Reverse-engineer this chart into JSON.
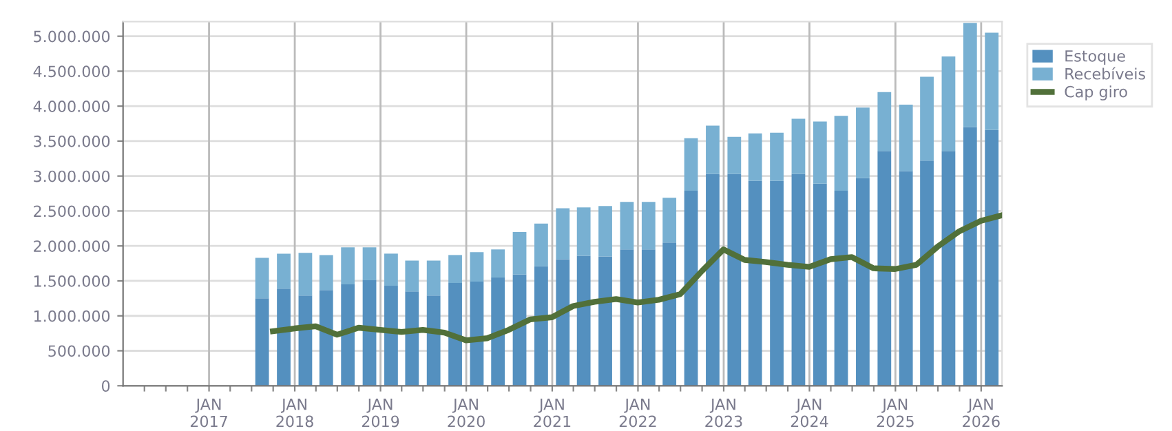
{
  "chart_data": {
    "type": "bar",
    "stacked": true,
    "grid": true,
    "legend": "top right",
    "line_style": "solid",
    "marker": "none",
    "x": [
      "2017-08-15",
      "2017-11-15",
      "2018-02-15",
      "2018-05-15",
      "2018-08-15",
      "2018-11-15",
      "2019-02-15",
      "2019-05-15",
      "2019-08-15",
      "2019-11-15",
      "2020-02-15",
      "2020-05-15",
      "2020-08-15",
      "2020-11-15",
      "2021-02-15",
      "2021-05-15",
      "2021-08-15",
      "2021-11-15",
      "2022-02-15",
      "2022-05-15",
      "2022-08-15",
      "2022-11-15",
      "2023-02-15",
      "2023-05-15",
      "2023-08-15",
      "2023-11-15",
      "2024-02-15",
      "2024-05-15",
      "2024-08-15",
      "2024-11-15",
      "2025-02-15",
      "2025-05-15",
      "2025-08-15",
      "2025-11-15",
      "2026-02-15"
    ],
    "series": [
      {
        "name": "Estoque",
        "color": "#5490bf",
        "values": [
          1250000,
          1390000,
          1290000,
          1370000,
          1450000,
          1510000,
          1430000,
          1350000,
          1290000,
          1470000,
          1490000,
          1550000,
          1590000,
          1710000,
          1810000,
          1860000,
          1850000,
          1950000,
          1950000,
          2050000,
          2790000,
          3030000,
          3030000,
          2930000,
          2930000,
          3030000,
          2890000,
          2790000,
          2970000,
          3360000,
          3070000,
          3220000,
          3360000,
          3700000,
          3660000
        ]
      },
      {
        "name": "Recebíveis",
        "color": "#78b0d2",
        "values": [
          580000,
          500000,
          610000,
          500000,
          530000,
          470000,
          460000,
          440000,
          500000,
          400000,
          420000,
          400000,
          610000,
          610000,
          730000,
          690000,
          720000,
          680000,
          680000,
          640000,
          750000,
          690000,
          530000,
          680000,
          690000,
          790000,
          890000,
          1070000,
          1010000,
          840000,
          950000,
          1200000,
          1350000,
          1490000,
          1390000
        ]
      },
      {
        "name": "Cap giro",
        "type": "line",
        "color": "#51703a",
        "x": [
          "2017-09-30",
          "2017-12-31",
          "2018-03-31",
          "2018-06-30",
          "2018-09-30",
          "2018-12-31",
          "2019-03-31",
          "2019-06-30",
          "2019-09-30",
          "2019-12-31",
          "2020-03-31",
          "2020-06-30",
          "2020-09-30",
          "2020-12-31",
          "2021-03-31",
          "2021-06-30",
          "2021-09-30",
          "2021-12-31",
          "2022-03-31",
          "2022-06-30",
          "2022-09-30",
          "2022-12-31",
          "2023-03-31",
          "2023-06-30",
          "2023-09-30",
          "2023-12-31",
          "2024-03-31",
          "2024-06-30",
          "2024-09-30",
          "2024-12-31",
          "2025-03-31",
          "2025-06-30",
          "2025-09-30",
          "2025-12-31",
          "2026-03-31"
        ],
        "values": [
          780000,
          820000,
          850000,
          730000,
          830000,
          800000,
          770000,
          800000,
          760000,
          650000,
          680000,
          800000,
          950000,
          980000,
          1140000,
          1200000,
          1240000,
          1190000,
          1230000,
          1310000,
          1640000,
          1950000,
          1800000,
          1770000,
          1730000,
          1700000,
          1810000,
          1840000,
          1680000,
          1670000,
          1730000,
          1990000,
          2210000,
          2360000,
          2440000
        ]
      }
    ],
    "xlim": [
      "2016-01-01",
      "2026-03-31"
    ],
    "xticks": [
      {
        "value": "2016-04-01",
        "label": null
      },
      {
        "value": "2016-07-01",
        "label": null
      },
      {
        "value": "2016-10-01",
        "label": null
      },
      {
        "value": "2017-01-01",
        "label": "JAN\n2017"
      },
      {
        "value": "2017-04-01",
        "label": null
      },
      {
        "value": "2017-07-01",
        "label": null
      },
      {
        "value": "2017-10-01",
        "label": null
      },
      {
        "value": "2018-01-01",
        "label": "JAN\n2018"
      },
      {
        "value": "2018-04-01",
        "label": null
      },
      {
        "value": "2018-07-01",
        "label": null
      },
      {
        "value": "2018-10-01",
        "label": null
      },
      {
        "value": "2019-01-01",
        "label": "JAN\n2019"
      },
      {
        "value": "2019-04-01",
        "label": null
      },
      {
        "value": "2019-07-01",
        "label": null
      },
      {
        "value": "2019-10-01",
        "label": null
      },
      {
        "value": "2020-01-01",
        "label": "JAN\n2020"
      },
      {
        "value": "2020-04-01",
        "label": null
      },
      {
        "value": "2020-07-01",
        "label": null
      },
      {
        "value": "2020-10-01",
        "label": null
      },
      {
        "value": "2021-01-01",
        "label": "JAN\n2021"
      },
      {
        "value": "2021-04-01",
        "label": null
      },
      {
        "value": "2021-07-01",
        "label": null
      },
      {
        "value": "2021-10-01",
        "label": null
      },
      {
        "value": "2022-01-01",
        "label": "JAN\n2022"
      },
      {
        "value": "2022-04-01",
        "label": null
      },
      {
        "value": "2022-07-01",
        "label": null
      },
      {
        "value": "2022-10-01",
        "label": null
      },
      {
        "value": "2023-01-01",
        "label": "JAN\n2023"
      },
      {
        "value": "2023-04-01",
        "label": null
      },
      {
        "value": "2023-07-01",
        "label": null
      },
      {
        "value": "2023-10-01",
        "label": null
      },
      {
        "value": "2024-01-01",
        "label": "JAN\n2024"
      },
      {
        "value": "2024-04-01",
        "label": null
      },
      {
        "value": "2024-07-01",
        "label": null
      },
      {
        "value": "2024-10-01",
        "label": null
      },
      {
        "value": "2025-01-01",
        "label": "JAN\n2025"
      },
      {
        "value": "2025-04-01",
        "label": null
      },
      {
        "value": "2025-07-01",
        "label": null
      },
      {
        "value": "2025-10-01",
        "label": null
      },
      {
        "value": "2026-01-01",
        "label": "JAN\n2026"
      }
    ],
    "ylim": [
      0,
      5210000
    ],
    "yticks": [
      0,
      {
        "value": 500000,
        "label": "500.000"
      },
      {
        "value": 1000000,
        "label": "1.000.000"
      },
      {
        "value": 1500000,
        "label": "1.500.000"
      },
      {
        "value": 2000000,
        "label": "2.000.000"
      },
      {
        "value": 2500000,
        "label": "2.500.000"
      },
      {
        "value": 3000000,
        "label": "3.000.000"
      },
      {
        "value": 3500000,
        "label": "3.500.000"
      },
      {
        "value": 4000000,
        "label": "4.000.000"
      },
      {
        "value": 4500000,
        "label": "4.500.000"
      },
      {
        "value": 5000000,
        "label": "5.000.000"
      }
    ]
  }
}
